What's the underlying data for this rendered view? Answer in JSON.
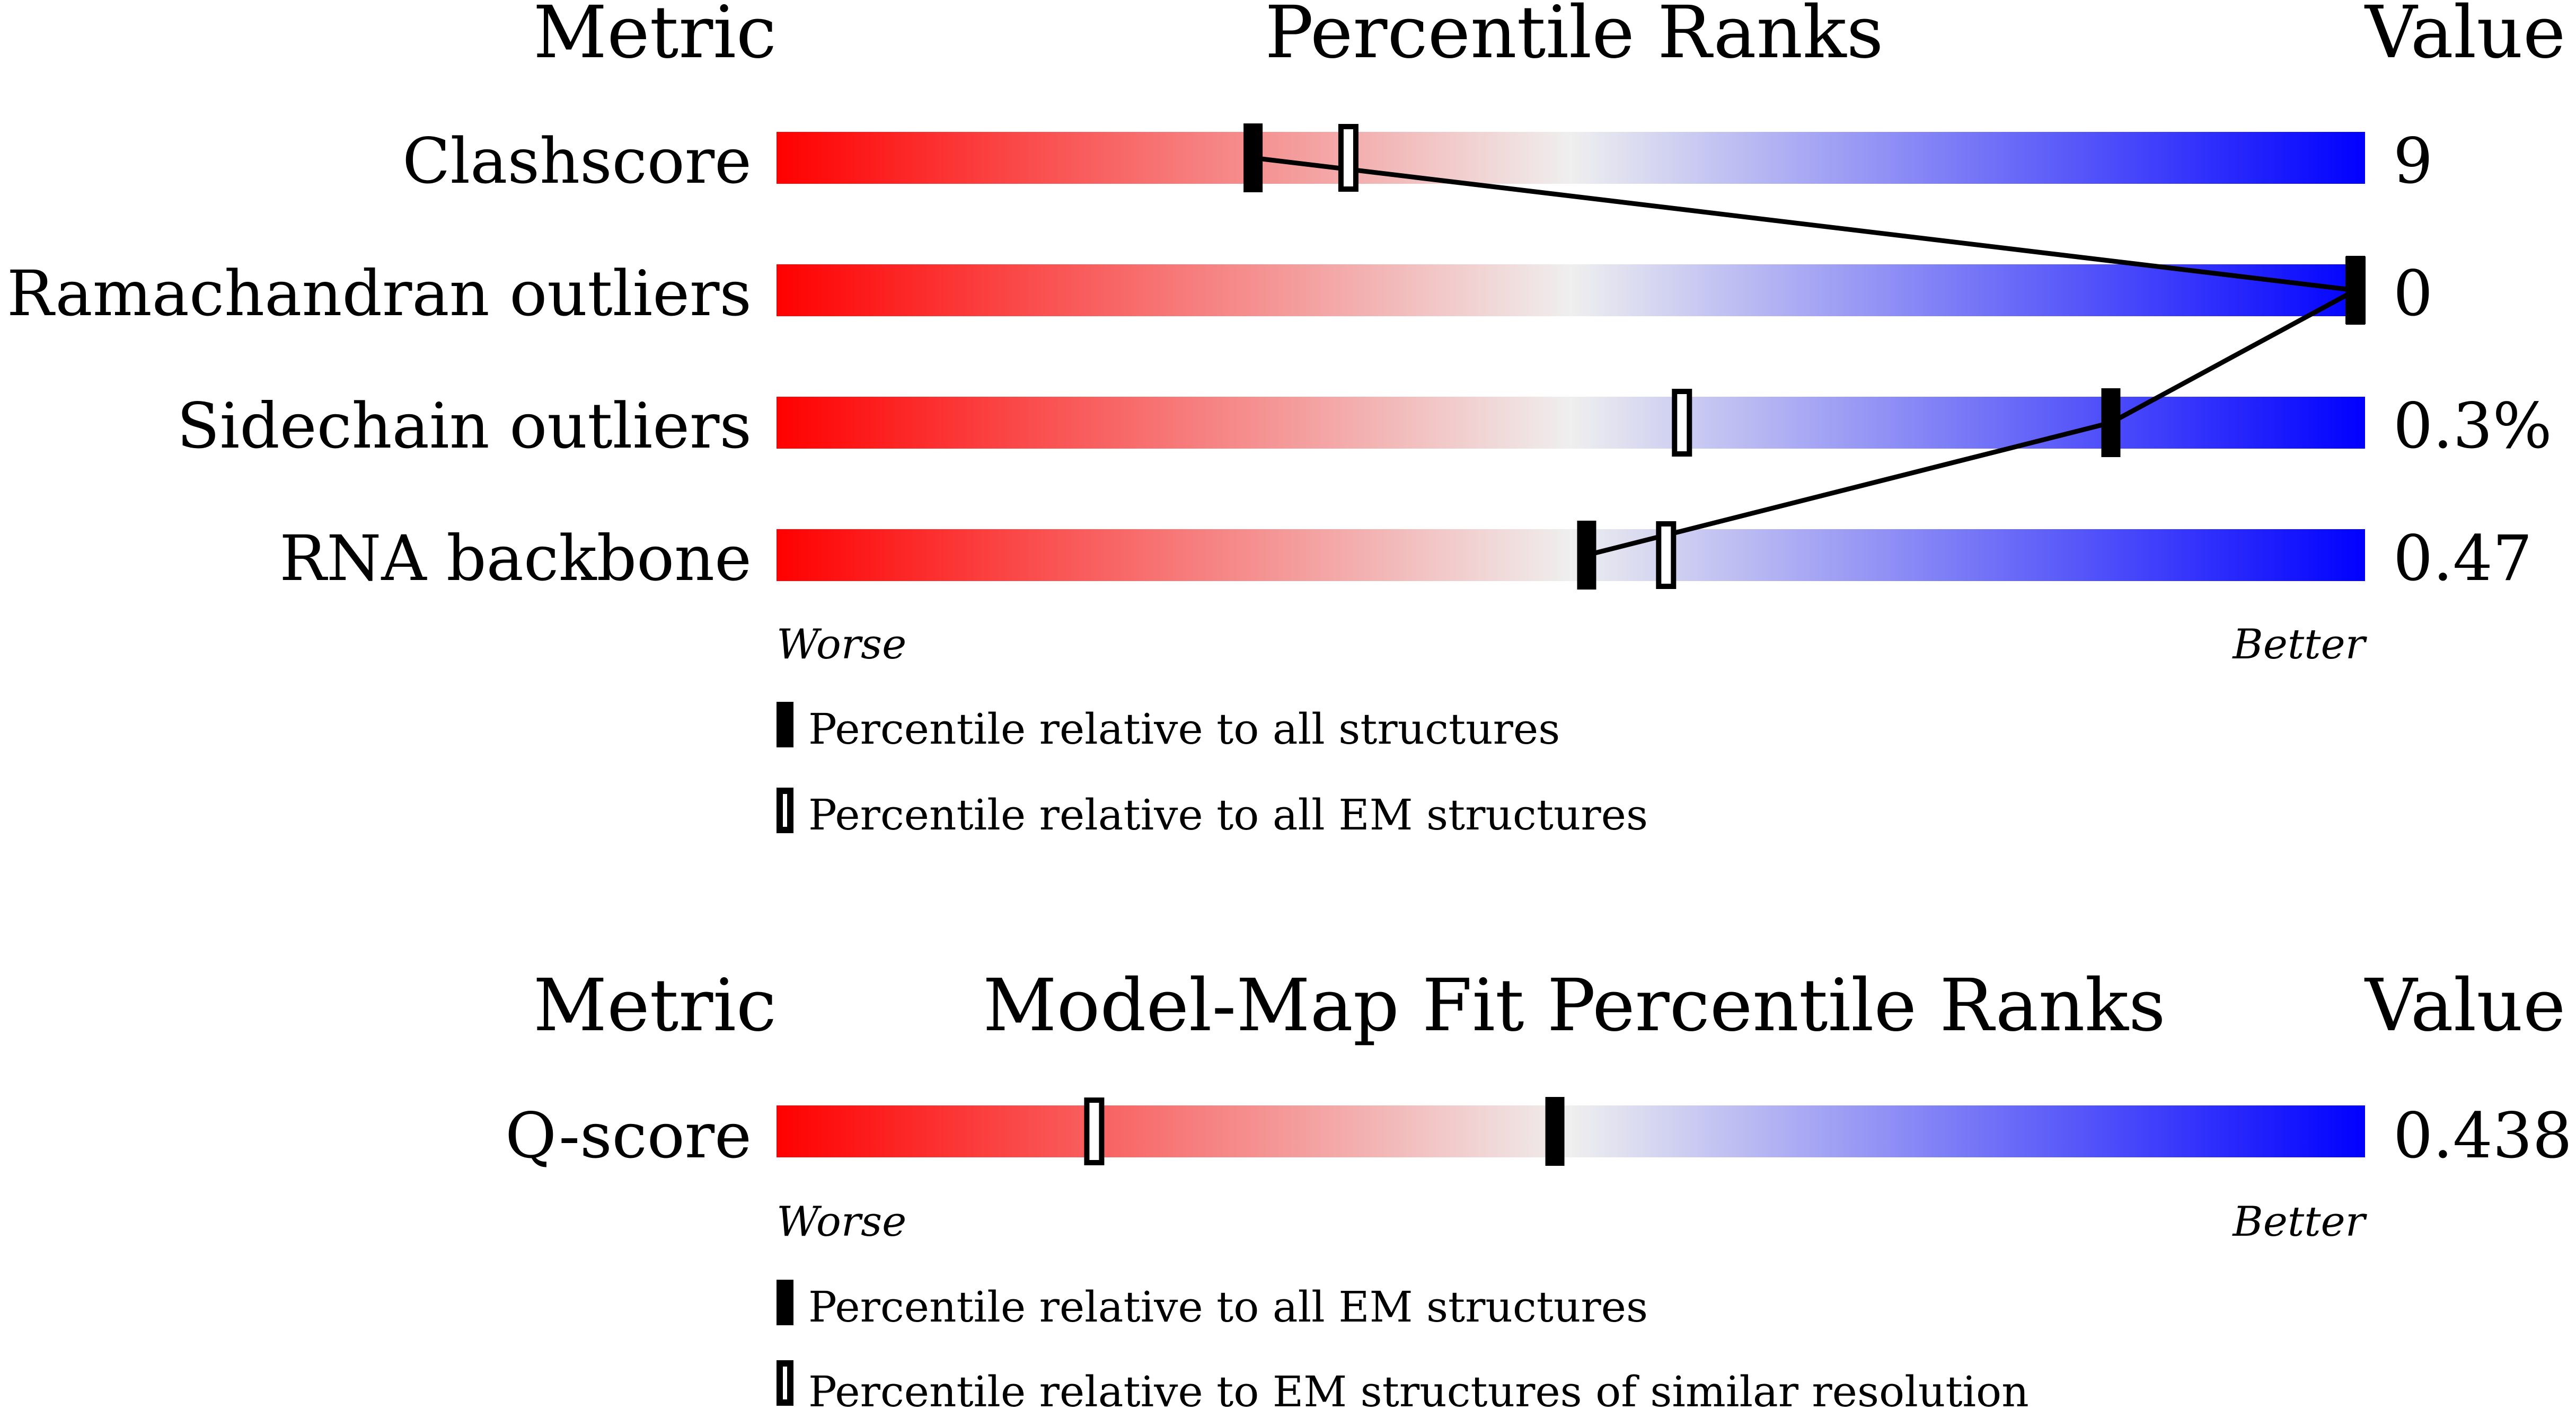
{
  "colors": {
    "worse": "#ff0000",
    "neutral": "#efefef",
    "better": "#0000ff",
    "marker": "#000000"
  },
  "chart_data": [
    {
      "type": "percentile-slider",
      "headers": {
        "metric": "Metric",
        "title": "Percentile Ranks",
        "value": "Value"
      },
      "axis": {
        "min": 0,
        "max": 100,
        "left_label": "Worse",
        "right_label": "Better"
      },
      "rows": [
        {
          "metric": "Clashscore",
          "value": "9",
          "percentile_all": 30,
          "percentile_em": 36
        },
        {
          "metric": "Ramachandran outliers",
          "value": "0",
          "percentile_all": 100,
          "percentile_em": 100
        },
        {
          "metric": "Sidechain outliers",
          "value": "0.3%",
          "percentile_all": 84,
          "percentile_em": 57
        },
        {
          "metric": "RNA backbone",
          "value": "0.47",
          "percentile_all": 51,
          "percentile_em": 56
        }
      ],
      "connect_series": "percentile_all",
      "legend": [
        {
          "marker": "filled",
          "label": "Percentile relative to all structures"
        },
        {
          "marker": "open",
          "label": "Percentile relative to all EM structures"
        }
      ]
    },
    {
      "type": "percentile-slider",
      "headers": {
        "metric": "Metric",
        "title": "Model-Map Fit Percentile Ranks",
        "value": "Value"
      },
      "axis": {
        "min": 0,
        "max": 100,
        "left_label": "Worse",
        "right_label": "Better"
      },
      "rows": [
        {
          "metric": "Q-score",
          "value": "0.438",
          "percentile_all": 49,
          "percentile_em": 20
        }
      ],
      "connect_series": null,
      "legend": [
        {
          "marker": "filled",
          "label": "Percentile relative to all EM structures"
        },
        {
          "marker": "open",
          "label": "Percentile relative to EM structures of similar resolution"
        }
      ]
    }
  ]
}
